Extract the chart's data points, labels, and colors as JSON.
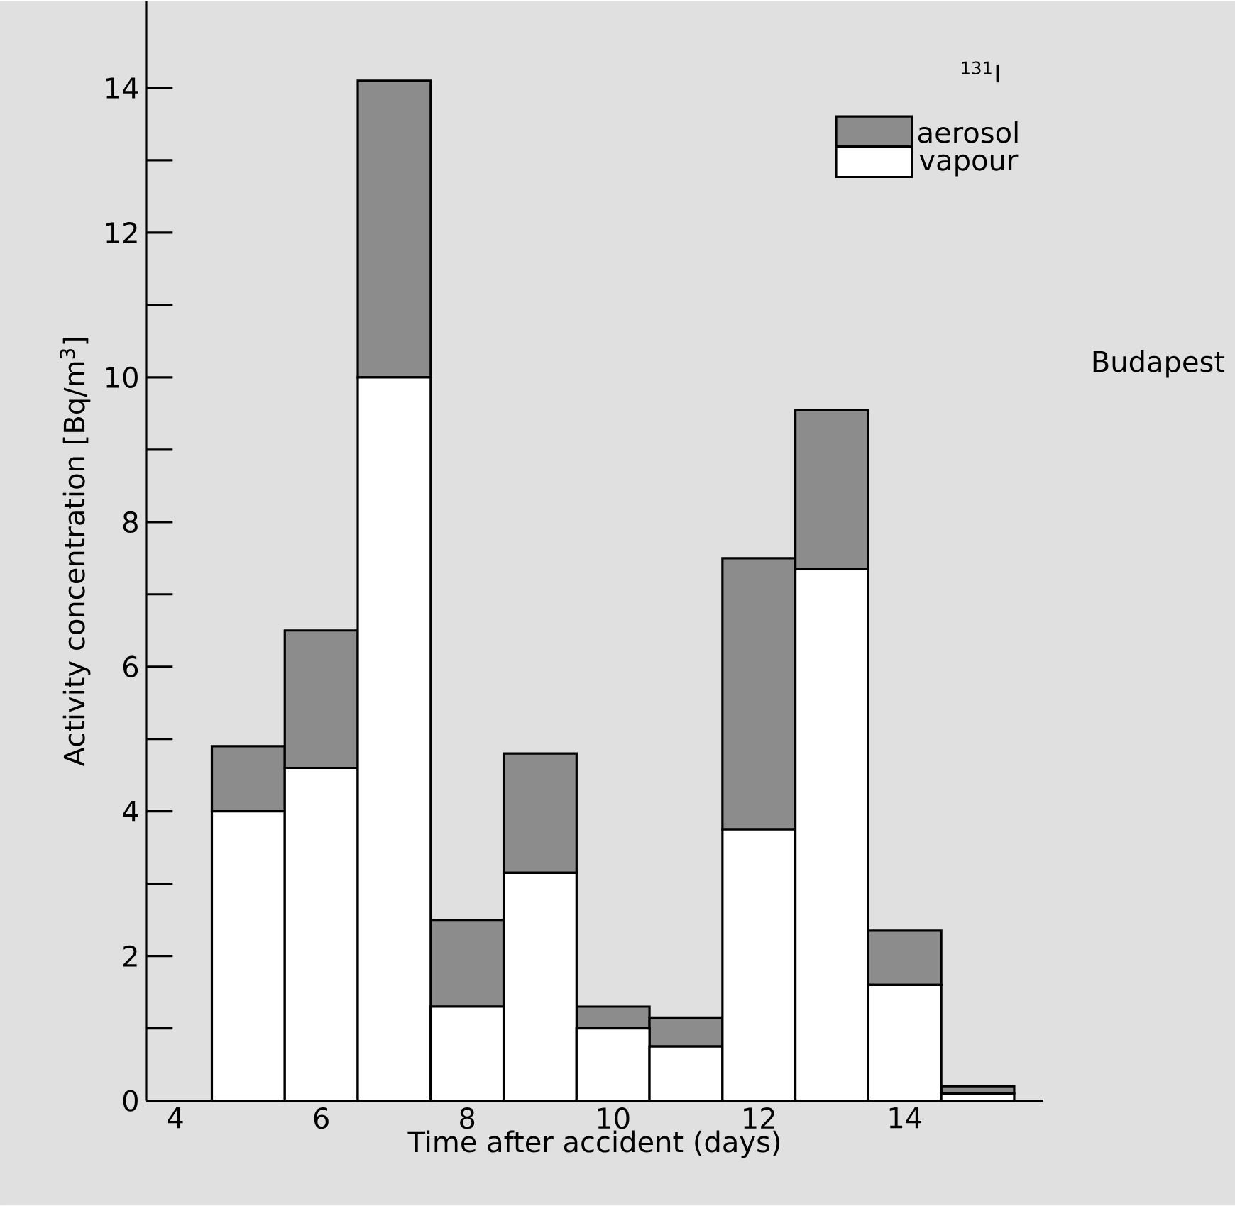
{
  "chart_data": {
    "type": "bar",
    "stacked": true,
    "legend_title": "$^{131}$I",
    "xlabel": "Time after accident (days)",
    "ylabel": "Activity concentration [Bq/m$^{3}$]",
    "annotations": [
      "Budapest"
    ],
    "x": [
      5,
      6,
      7,
      8,
      9,
      10,
      11,
      12,
      13,
      14,
      15
    ],
    "series": [
      {
        "name": "vapour",
        "color": "#ffffff",
        "values": [
          4.0,
          4.6,
          10.0,
          1.3,
          3.15,
          1.0,
          0.75,
          3.75,
          7.35,
          1.6,
          0.1
        ]
      },
      {
        "name": "aerosol",
        "color": "#8c8c8c",
        "values": [
          0.9,
          1.9,
          4.1,
          1.2,
          1.65,
          0.3,
          0.4,
          3.75,
          2.2,
          0.75,
          0.1
        ]
      }
    ],
    "xlim": [
      3.6,
      15.9
    ],
    "ylim": [
      0,
      15.2
    ],
    "xticks": [
      4,
      6,
      8,
      10,
      12,
      14
    ],
    "yticks": [
      0,
      2,
      4,
      6,
      8,
      10,
      12,
      14
    ],
    "legend": "top right"
  }
}
